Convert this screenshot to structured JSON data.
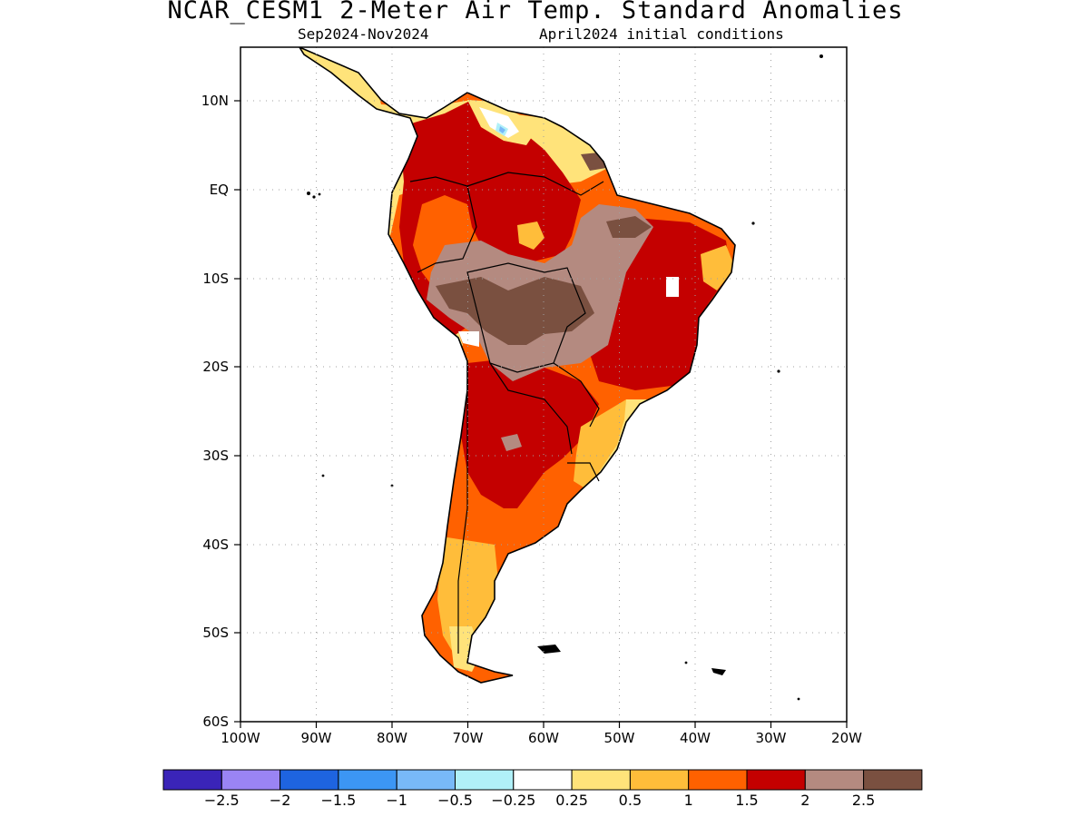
{
  "title": "NCAR_CESM1 2-Meter Air Temp. Standard Anomalies",
  "subtitle_period": "Sep2024-Nov2024",
  "subtitle_init": "April2024 initial conditions",
  "map": {
    "lon_range": [
      -100,
      -20
    ],
    "lat_range": [
      -60,
      15
    ],
    "x_ticks": [
      "100W",
      "90W",
      "80W",
      "70W",
      "60W",
      "50W",
      "40W",
      "30W",
      "20W"
    ],
    "y_ticks": [
      "10N",
      "EQ",
      "10S",
      "20S",
      "30S",
      "40S",
      "50S",
      "60S"
    ],
    "gridlines": "dotted",
    "projection": "cylindrical equidistant"
  },
  "colorbar": {
    "colors": [
      "#3a24b8",
      "#9a84f4",
      "#1e64e0",
      "#3c96f4",
      "#78b9f8",
      "#b0f0f8",
      "#ffffff",
      "#ffe37a",
      "#ffbd3a",
      "#ff6100",
      "#c40000",
      "#b48a80",
      "#7a5040"
    ],
    "labels": [
      "-2.5",
      "-2",
      "-1.5",
      "-1",
      "-0.5",
      "-0.25",
      "0.25",
      "0.5",
      "1",
      "1.5",
      "2",
      "2.5"
    ]
  },
  "anomaly_regions": [
    {
      "name": "continental-base-warm",
      "level": 1.5,
      "color": "#ff6100"
    },
    {
      "name": "northwest-amazon-strong",
      "level": 2.0,
      "color": "#c40000"
    },
    {
      "name": "northeast-brazil-strong",
      "level": 2.0,
      "color": "#c40000"
    },
    {
      "name": "southern-cone-strong",
      "level": 2.0,
      "color": "#c40000"
    },
    {
      "name": "central-brazil-bolivia-very-strong",
      "level": 2.5,
      "color": "#b48a80"
    },
    {
      "name": "bolivia-core-extreme",
      "level": 3.0,
      "color": "#7a5040"
    },
    {
      "name": "patagonia-mild",
      "level": 1.0,
      "color": "#ffbd3a"
    },
    {
      "name": "southeast-coast-mild",
      "level": 0.5,
      "color": "#ffe37a"
    },
    {
      "name": "venezuela-neutral",
      "level": 0.0,
      "color": "#ffffff"
    },
    {
      "name": "venezuela-cool-spot",
      "level": -0.5,
      "color": "#78b9f8"
    }
  ]
}
